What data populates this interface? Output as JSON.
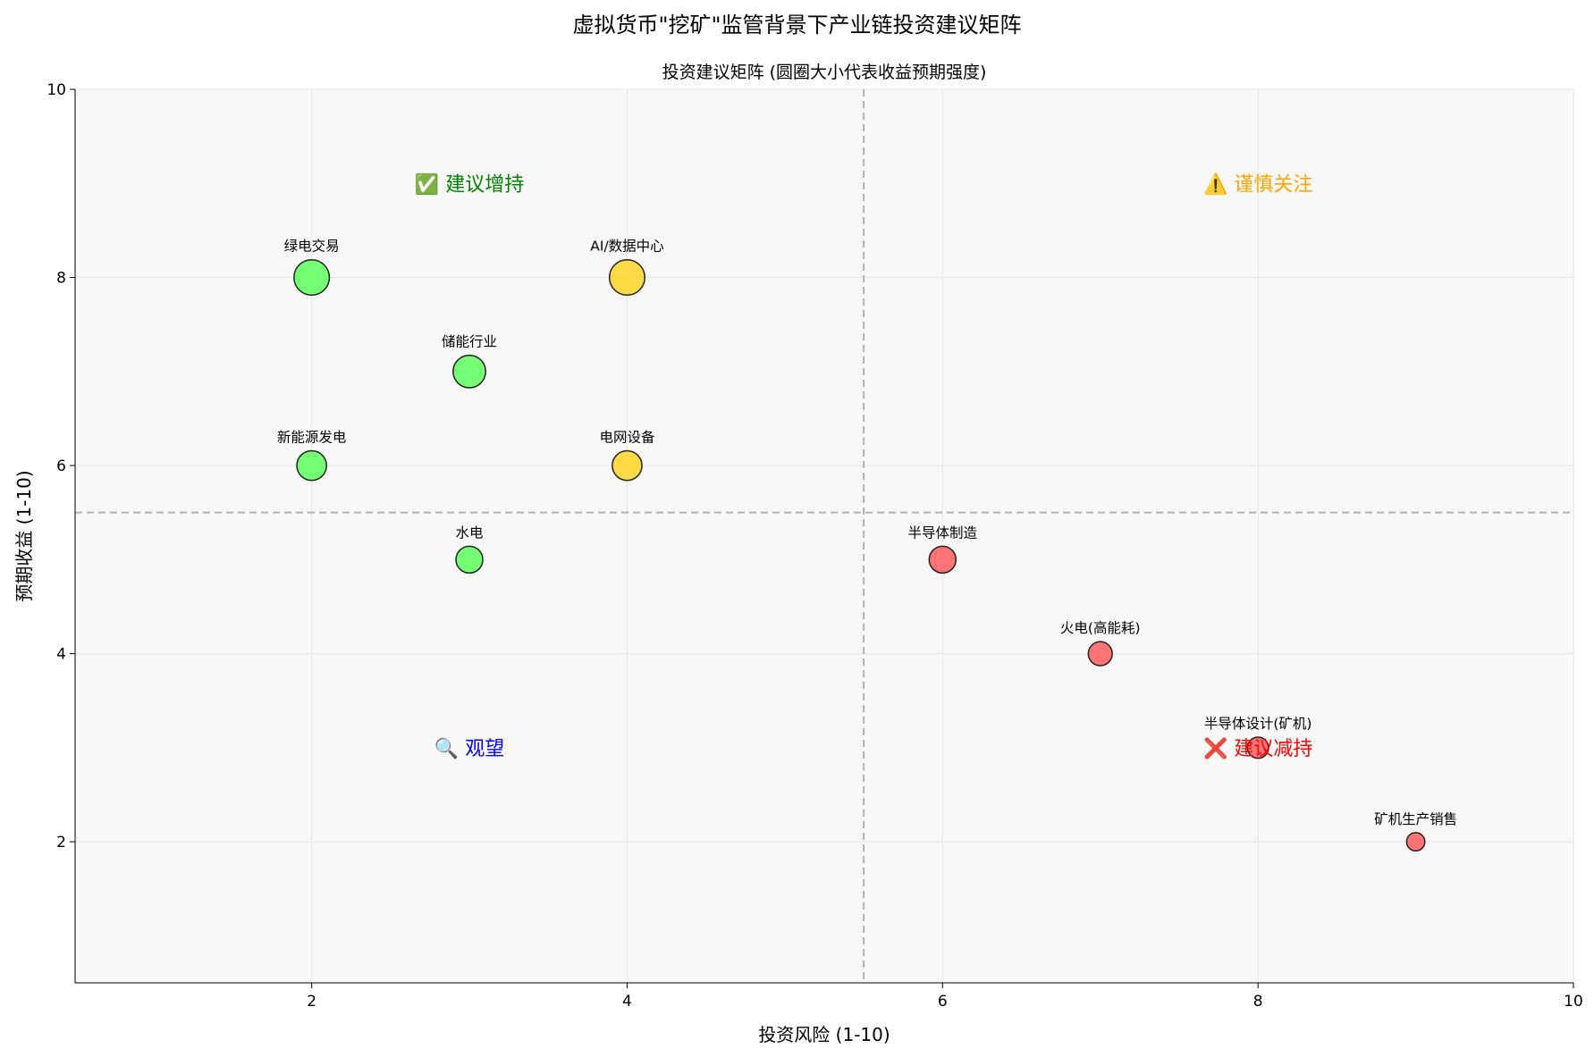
{
  "chart_data": {
    "type": "scatter",
    "suptitle": "虚拟货币\"挖矿\"监管背景下产业链投资建议矩阵",
    "title": "投资建议矩阵 (圆圈大小代表收益预期强度)",
    "xlabel": "投资风险 (1-10)",
    "ylabel": "预期收益 (1-10)",
    "xlim": [
      0.5,
      10
    ],
    "ylim": [
      0.5,
      10
    ],
    "xticks": [
      2,
      4,
      6,
      8,
      10
    ],
    "yticks": [
      2,
      4,
      6,
      8,
      10
    ],
    "grid": true,
    "divider_x": 5.5,
    "divider_y": 5.5,
    "points": [
      {
        "label": "绿电交易",
        "x": 2,
        "y": 8,
        "color": "#66ff66"
      },
      {
        "label": "AI/数据中心",
        "x": 4,
        "y": 8,
        "color": "#ffd633"
      },
      {
        "label": "储能行业",
        "x": 3,
        "y": 7,
        "color": "#66ff66"
      },
      {
        "label": "新能源发电",
        "x": 2,
        "y": 6,
        "color": "#66ff66"
      },
      {
        "label": "电网设备",
        "x": 4,
        "y": 6,
        "color": "#ffd633"
      },
      {
        "label": "水电",
        "x": 3,
        "y": 5,
        "color": "#66ff66"
      },
      {
        "label": "半导体制造",
        "x": 6,
        "y": 5,
        "color": "#ff6666"
      },
      {
        "label": "火电(高能耗)",
        "x": 7,
        "y": 4,
        "color": "#ff6666"
      },
      {
        "label": "半导体设计(矿机)",
        "x": 8,
        "y": 3,
        "color": "#ff6666"
      },
      {
        "label": "矿机生产销售",
        "x": 9,
        "y": 2,
        "color": "#ff6666"
      }
    ],
    "quadrant_labels": [
      {
        "text": "✅ 建议增持",
        "x": 3,
        "y": 9,
        "color": "#008000"
      },
      {
        "text": "⚠️ 谨慎关注",
        "x": 8,
        "y": 9,
        "color": "#ffa500"
      },
      {
        "text": "🔍 观望",
        "x": 3,
        "y": 3,
        "color": "#0000ff"
      },
      {
        "text": "❌ 建议减持",
        "x": 8,
        "y": 3,
        "color": "#ff0000"
      }
    ]
  }
}
